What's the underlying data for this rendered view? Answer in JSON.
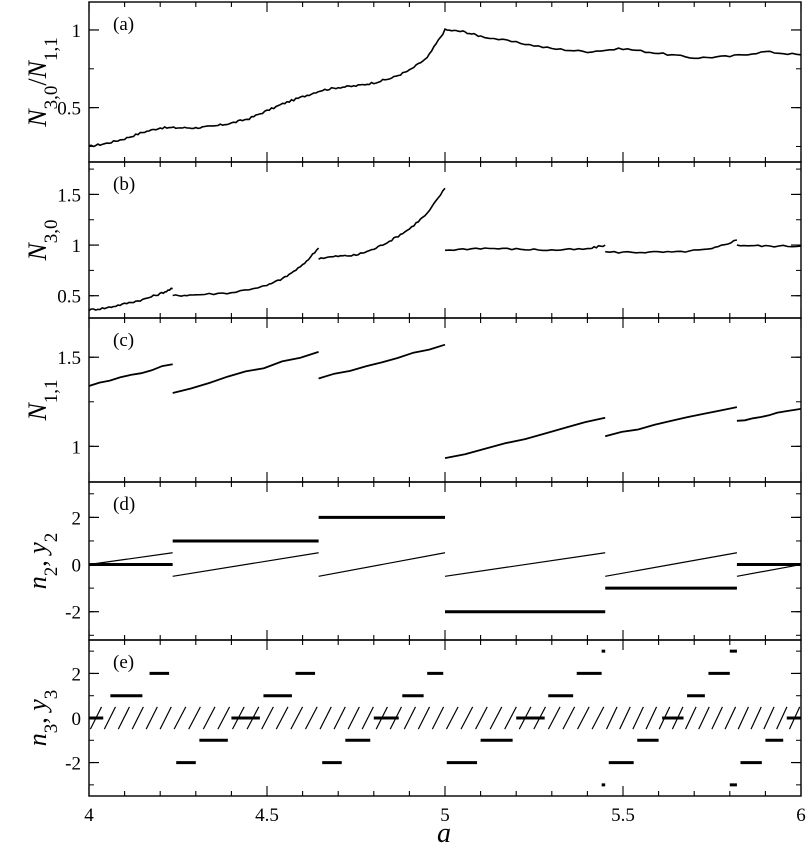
{
  "chart_data": [
    {
      "type": "line",
      "panel": "(a)",
      "ylabel": "N3,0/N1,1",
      "ylabel_parts": [
        {
          "t": "N",
          "i": true
        },
        {
          "t": "3,0",
          "s": "sub"
        },
        {
          "t": "/",
          "i": false
        },
        {
          "t": "N",
          "i": true
        },
        {
          "t": "1,1",
          "s": "sub"
        }
      ],
      "ylim": [
        0.15,
        1.18
      ],
      "yticks": [
        0.5,
        1
      ],
      "yticklabels": [
        "0.5",
        "1"
      ],
      "series": [
        {
          "x": [
            4.0,
            4.05,
            4.1,
            4.15,
            4.2,
            4.25,
            4.3,
            4.35,
            4.4,
            4.45,
            4.5,
            4.55,
            4.6,
            4.65,
            4.7,
            4.75,
            4.8,
            4.85,
            4.9,
            4.95,
            5.0,
            5.05,
            5.1,
            5.2,
            5.3,
            5.4,
            5.5,
            5.6,
            5.7,
            5.8,
            5.9,
            6.0
          ],
          "y": [
            0.25,
            0.27,
            0.3,
            0.34,
            0.37,
            0.37,
            0.37,
            0.38,
            0.4,
            0.43,
            0.48,
            0.53,
            0.57,
            0.61,
            0.63,
            0.64,
            0.66,
            0.69,
            0.74,
            0.82,
            1.0,
            0.99,
            0.96,
            0.92,
            0.88,
            0.86,
            0.88,
            0.85,
            0.82,
            0.83,
            0.86,
            0.84
          ]
        }
      ]
    },
    {
      "type": "line",
      "panel": "(b)",
      "ylabel": "N3,0",
      "ylabel_parts": [
        {
          "t": "N",
          "i": true
        },
        {
          "t": "3,0",
          "s": "sub"
        }
      ],
      "ylim": [
        0.28,
        1.82
      ],
      "yticks": [
        0.5,
        1,
        1.5
      ],
      "yticklabels": [
        "0.5",
        "1",
        "1.5"
      ],
      "series": [
        {
          "x": [
            4.0,
            4.05,
            4.1,
            4.15,
            4.2,
            4.235
          ],
          "y": [
            0.36,
            0.38,
            0.42,
            0.46,
            0.52,
            0.57
          ]
        },
        {
          "x": [
            4.235,
            4.3,
            4.4,
            4.5,
            4.55,
            4.6,
            4.645
          ],
          "y": [
            0.5,
            0.51,
            0.53,
            0.6,
            0.68,
            0.8,
            0.97
          ]
        },
        {
          "x": [
            4.645,
            4.7,
            4.75,
            4.8,
            4.85,
            4.9,
            4.95,
            5.0
          ],
          "y": [
            0.87,
            0.89,
            0.9,
            0.96,
            1.05,
            1.16,
            1.31,
            1.56
          ]
        },
        {
          "x": [
            5.0,
            5.1,
            5.2,
            5.3,
            5.4,
            5.45
          ],
          "y": [
            0.95,
            0.97,
            0.96,
            0.95,
            0.96,
            1.0
          ]
        },
        {
          "x": [
            5.45,
            5.55,
            5.65,
            5.75,
            5.82
          ],
          "y": [
            0.93,
            0.93,
            0.93,
            0.96,
            1.05
          ]
        },
        {
          "x": [
            5.82,
            5.9,
            6.0
          ],
          "y": [
            1.0,
            0.99,
            0.99
          ]
        }
      ]
    },
    {
      "type": "line",
      "panel": "(c)",
      "ylabel": "N1,1",
      "ylabel_parts": [
        {
          "t": "N",
          "i": true
        },
        {
          "t": "1,1",
          "s": "sub"
        }
      ],
      "ylim": [
        0.8,
        1.72
      ],
      "yticks": [
        1,
        1.5
      ],
      "yticklabels": [
        "1",
        "1.5"
      ],
      "series": [
        {
          "x": [
            4.0,
            4.235
          ],
          "y": [
            1.34,
            1.46
          ]
        },
        {
          "x": [
            4.235,
            4.645
          ],
          "y": [
            1.3,
            1.53
          ]
        },
        {
          "x": [
            4.645,
            5.0
          ],
          "y": [
            1.38,
            1.57
          ]
        },
        {
          "x": [
            5.0,
            5.45
          ],
          "y": [
            0.93,
            1.16
          ]
        },
        {
          "x": [
            5.45,
            5.82
          ],
          "y": [
            1.06,
            1.22
          ]
        },
        {
          "x": [
            5.82,
            6.0
          ],
          "y": [
            1.14,
            1.21
          ]
        }
      ]
    },
    {
      "type": "line",
      "panel": "(d)",
      "ylabel": "n2, y2",
      "ylabel_parts": [
        {
          "t": "n",
          "i": true
        },
        {
          "t": "2",
          "s": "sub"
        },
        {
          "t": ",  ",
          "i": false
        },
        {
          "t": "y",
          "i": true
        },
        {
          "t": "2",
          "s": "sub"
        }
      ],
      "ylim": [
        -3.2,
        3.5
      ],
      "yticks": [
        -2,
        0,
        2
      ],
      "yticklabels": [
        "-2",
        "0",
        "2"
      ],
      "steps": [
        {
          "x0": 4.0,
          "x1": 4.235,
          "y": 0
        },
        {
          "x0": 4.235,
          "x1": 4.645,
          "y": 1
        },
        {
          "x0": 4.645,
          "x1": 5.0,
          "y": 2
        },
        {
          "x0": 5.0,
          "x1": 5.45,
          "y": -2
        },
        {
          "x0": 5.45,
          "x1": 5.82,
          "y": -1
        },
        {
          "x0": 5.82,
          "x1": 6.0,
          "y": 0
        }
      ],
      "ramps": [
        {
          "x0": 4.0,
          "x1": 4.235,
          "y0": 0,
          "y1": 0.5
        },
        {
          "x0": 4.235,
          "x1": 4.645,
          "y0": -0.5,
          "y1": 0.5
        },
        {
          "x0": 4.645,
          "x1": 5.0,
          "y0": -0.5,
          "y1": 0.5
        },
        {
          "x0": 5.0,
          "x1": 5.45,
          "y0": -0.5,
          "y1": 0.5
        },
        {
          "x0": 5.45,
          "x1": 5.82,
          "y0": -0.5,
          "y1": 0.5
        },
        {
          "x0": 5.82,
          "x1": 6.0,
          "y0": -0.5,
          "y1": 0
        }
      ]
    },
    {
      "type": "line",
      "panel": "(e)",
      "ylabel": "n3, y3",
      "ylabel_parts": [
        {
          "t": "n",
          "i": true
        },
        {
          "t": "3",
          "s": "sub"
        },
        {
          "t": ",  ",
          "i": false
        },
        {
          "t": "y",
          "i": true
        },
        {
          "t": "3",
          "s": "sub"
        }
      ],
      "ylim": [
        -3.5,
        3.5
      ],
      "yticks": [
        -2,
        0,
        2
      ],
      "yticklabels": [
        "-2",
        "0",
        "2"
      ],
      "steps": [
        {
          "x0": 4.0,
          "x1": 4.04,
          "y": 0
        },
        {
          "x0": 4.06,
          "x1": 4.15,
          "y": 1
        },
        {
          "x0": 4.17,
          "x1": 4.225,
          "y": 2
        },
        {
          "x0": 4.245,
          "x1": 4.3,
          "y": -2
        },
        {
          "x0": 4.31,
          "x1": 4.39,
          "y": -1
        },
        {
          "x0": 4.4,
          "x1": 4.48,
          "y": 0
        },
        {
          "x0": 4.49,
          "x1": 4.57,
          "y": 1
        },
        {
          "x0": 4.58,
          "x1": 4.635,
          "y": 2
        },
        {
          "x0": 4.655,
          "x1": 4.71,
          "y": -2
        },
        {
          "x0": 4.72,
          "x1": 4.79,
          "y": -1
        },
        {
          "x0": 4.8,
          "x1": 4.87,
          "y": 0
        },
        {
          "x0": 4.88,
          "x1": 4.94,
          "y": 1
        },
        {
          "x0": 4.95,
          "x1": 4.995,
          "y": 2
        },
        {
          "x0": 5.005,
          "x1": 5.09,
          "y": -2
        },
        {
          "x0": 5.1,
          "x1": 5.19,
          "y": -1
        },
        {
          "x0": 5.2,
          "x1": 5.28,
          "y": 0
        },
        {
          "x0": 5.29,
          "x1": 5.36,
          "y": 1
        },
        {
          "x0": 5.37,
          "x1": 5.44,
          "y": 2
        },
        {
          "x0": 5.44,
          "x1": 5.45,
          "y": 3
        },
        {
          "x0": 5.44,
          "x1": 5.45,
          "y": -3
        },
        {
          "x0": 5.46,
          "x1": 5.53,
          "y": -2
        },
        {
          "x0": 5.54,
          "x1": 5.6,
          "y": -1
        },
        {
          "x0": 5.61,
          "x1": 5.67,
          "y": 0
        },
        {
          "x0": 5.68,
          "x1": 5.73,
          "y": 1
        },
        {
          "x0": 5.74,
          "x1": 5.8,
          "y": 2
        },
        {
          "x0": 5.8,
          "x1": 5.82,
          "y": 3
        },
        {
          "x0": 5.8,
          "x1": 5.82,
          "y": -3
        },
        {
          "x0": 5.83,
          "x1": 5.89,
          "y": -2
        },
        {
          "x0": 5.9,
          "x1": 5.95,
          "y": -1
        },
        {
          "x0": 5.96,
          "x1": 6.0,
          "y": 0
        }
      ],
      "ramp_segments": [
        [
          4.0,
          4.235,
          6
        ],
        [
          4.235,
          4.645,
          10
        ],
        [
          4.645,
          5.0,
          9
        ],
        [
          5.0,
          5.45,
          11
        ],
        [
          5.45,
          5.82,
          10
        ],
        [
          5.82,
          6.0,
          5
        ]
      ]
    }
  ],
  "x_axis": {
    "label": "a",
    "xlim": [
      4,
      6
    ],
    "ticks": [
      4,
      4.5,
      5,
      5.5,
      6
    ],
    "ticklabels": [
      "4",
      "4.5",
      "5",
      "5.5",
      "6"
    ]
  }
}
